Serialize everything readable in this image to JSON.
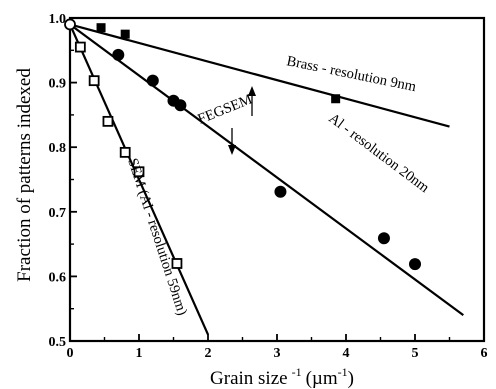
{
  "chart_data": {
    "type": "scatter",
    "title": "",
    "xlabel": "Grain size",
    "xlabel_sup": "-1",
    "xlabel_unit": "(µm",
    "xlabel_unit_sup": "-1",
    "xlabel_close": ")",
    "ylabel": "Fraction of patterns indexed",
    "xlim": [
      0,
      6
    ],
    "ylim": [
      0.5,
      1.0
    ],
    "x_ticks": [
      0,
      1,
      2,
      3,
      4,
      5,
      6
    ],
    "y_ticks": [
      0.5,
      0.6,
      0.7,
      0.8,
      0.9,
      1.0
    ],
    "x_tick_labels": [
      "0",
      "1",
      "2",
      "3",
      "4",
      "5",
      "6"
    ],
    "y_tick_labels": [
      "0.5",
      "0.6",
      "0.7",
      "0.8",
      "0.9",
      "1.0"
    ],
    "grid": false,
    "series": [
      {
        "marker": "filled-square",
        "x": [
          0.0,
          0.45,
          0.8,
          3.85
        ],
        "y": [
          0.99,
          0.985,
          0.975,
          0.875
        ],
        "fit": {
          "x": [
            0.0,
            5.5
          ],
          "y": [
            0.99,
            0.832
          ]
        }
      },
      {
        "marker": "filled-circle",
        "x": [
          0.7,
          1.2,
          1.5,
          1.6,
          3.05,
          4.55,
          5.0
        ],
        "y": [
          0.943,
          0.903,
          0.872,
          0.865,
          0.731,
          0.659,
          0.619
        ],
        "fit": {
          "x": [
            0.0,
            5.7
          ],
          "y": [
            0.99,
            0.54
          ]
        }
      },
      {
        "marker": "open-square",
        "x": [
          0.15,
          0.35,
          0.55,
          0.8,
          1.0,
          1.55
        ],
        "y": [
          0.955,
          0.903,
          0.84,
          0.792,
          0.762,
          0.62
        ],
        "fit": {
          "x": [
            0.0,
            2.0
          ],
          "y": [
            0.99,
            0.51
          ]
        }
      }
    ],
    "annotations": [
      {
        "id": "brass",
        "text": "Brass - resolution  9nm"
      },
      {
        "id": "al",
        "text": "Al - resolution 20nm"
      },
      {
        "id": "fegsem",
        "text": "FEGSEM"
      },
      {
        "id": "sem",
        "text": "SEM (Al - resolution 59nm)"
      }
    ]
  }
}
